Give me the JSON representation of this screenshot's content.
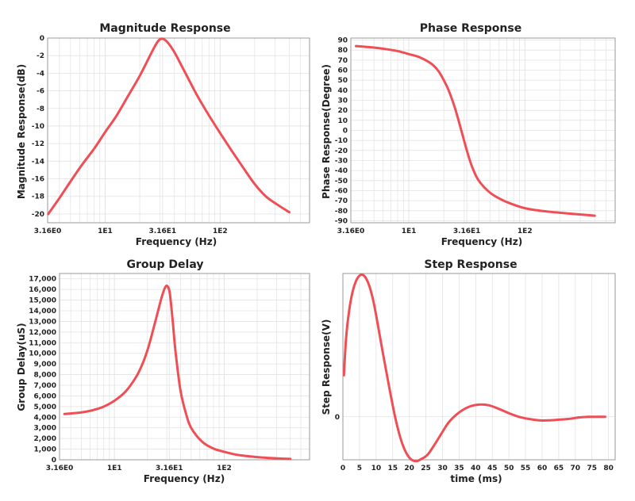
{
  "colors": {
    "line": "#f04e55",
    "grid": "#e2e2e2",
    "frame": "#999999"
  },
  "chart_data": [
    {
      "type": "line",
      "title": "Magnitude Response",
      "xlabel": "Frequency (Hz)",
      "ylabel": "Magnitude Response(dB)",
      "xscale": "log",
      "xlim": [
        3.16,
        600
      ],
      "ylim": [
        -21,
        0
      ],
      "xticks": [
        {
          "v": 3.16,
          "label": "3.16E0"
        },
        {
          "v": 10,
          "label": "1E1"
        },
        {
          "v": 31.6,
          "label": "3.16E1"
        },
        {
          "v": 100,
          "label": "1E2"
        }
      ],
      "yticks": [
        {
          "v": 0,
          "label": "0"
        },
        {
          "v": -2,
          "label": "-2"
        },
        {
          "v": -4,
          "label": "-4"
        },
        {
          "v": -6,
          "label": "-6"
        },
        {
          "v": -8,
          "label": "-8"
        },
        {
          "v": -10,
          "label": "-10"
        },
        {
          "v": -12,
          "label": "-12"
        },
        {
          "v": -14,
          "label": "-14"
        },
        {
          "v": -16,
          "label": "-16"
        },
        {
          "v": -18,
          "label": "-18"
        },
        {
          "v": -20,
          "label": "-20"
        }
      ],
      "grid": true,
      "series": [
        {
          "x": [
            3.2,
            4.0,
            5.0,
            6.3,
            8.0,
            10,
            12.6,
            15.8,
            20,
            25,
            28,
            30,
            32,
            35,
            40,
            50,
            63,
            80,
            100,
            126,
            160,
            200,
            250,
            320,
            400
          ],
          "y": [
            -20.0,
            -18.2,
            -16.3,
            -14.4,
            -12.6,
            -10.7,
            -8.8,
            -6.6,
            -4.3,
            -1.8,
            -0.6,
            -0.15,
            -0.1,
            -0.5,
            -1.6,
            -4.0,
            -6.5,
            -8.8,
            -10.8,
            -12.8,
            -14.8,
            -16.6,
            -18.0,
            -19.0,
            -19.8
          ]
        }
      ]
    },
    {
      "type": "line",
      "title": "Phase Response",
      "xlabel": "Frequency (Hz)",
      "ylabel": "Phase Response(Degree)",
      "xscale": "log",
      "xlim": [
        3.16,
        600
      ],
      "ylim": [
        -92,
        92
      ],
      "xticks": [
        {
          "v": 3.16,
          "label": "3.16E0"
        },
        {
          "v": 10,
          "label": "1E1"
        },
        {
          "v": 31.6,
          "label": "3.16E1"
        },
        {
          "v": 100,
          "label": "1E2"
        }
      ],
      "yticks": [
        {
          "v": 90,
          "label": "90"
        },
        {
          "v": 80,
          "label": "80"
        },
        {
          "v": 70,
          "label": "70"
        },
        {
          "v": 60,
          "label": "60"
        },
        {
          "v": 50,
          "label": "50"
        },
        {
          "v": 40,
          "label": "40"
        },
        {
          "v": 30,
          "label": "30"
        },
        {
          "v": 20,
          "label": "20"
        },
        {
          "v": 10,
          "label": "10"
        },
        {
          "v": 0,
          "label": "0"
        },
        {
          "v": -10,
          "label": "-10"
        },
        {
          "v": -20,
          "label": "-20"
        },
        {
          "v": -30,
          "label": "-30"
        },
        {
          "v": -40,
          "label": "-40"
        },
        {
          "v": -50,
          "label": "-50"
        },
        {
          "v": -60,
          "label": "-60"
        },
        {
          "v": -70,
          "label": "-70"
        },
        {
          "v": -80,
          "label": "-80"
        },
        {
          "v": -90,
          "label": "-90"
        }
      ],
      "grid": true,
      "series": [
        {
          "x": [
            3.5,
            5,
            6.3,
            8,
            10,
            12.6,
            15.8,
            18,
            20,
            22,
            25,
            28,
            31.6,
            35,
            40,
            50,
            63,
            80,
            100,
            126,
            160,
            200,
            250,
            320,
            400
          ],
          "y": [
            84,
            82.5,
            81,
            79,
            76,
            72.5,
            66,
            59,
            50,
            40,
            22,
            2,
            -20,
            -36,
            -50,
            -62,
            -69,
            -74,
            -77.5,
            -79.5,
            -81,
            -82,
            -83,
            -84,
            -85
          ]
        }
      ]
    },
    {
      "type": "line",
      "title": "Group Delay",
      "xlabel": "Frequency (Hz)",
      "ylabel": "Group Delay(uS)",
      "xscale": "log",
      "xlim": [
        3.16,
        600
      ],
      "ylim": [
        0,
        17500
      ],
      "xticks": [
        {
          "v": 3.16,
          "label": "3.16E0"
        },
        {
          "v": 10,
          "label": "1E1"
        },
        {
          "v": 31.6,
          "label": "3.16E1"
        },
        {
          "v": 100,
          "label": "1E2"
        }
      ],
      "yticks": [
        {
          "v": 0,
          "label": "0"
        },
        {
          "v": 1000,
          "label": "1,000"
        },
        {
          "v": 2000,
          "label": "2,000"
        },
        {
          "v": 3000,
          "label": "3,000"
        },
        {
          "v": 4000,
          "label": "4,000"
        },
        {
          "v": 5000,
          "label": "5,000"
        },
        {
          "v": 6000,
          "label": "6,000"
        },
        {
          "v": 7000,
          "label": "7,000"
        },
        {
          "v": 8000,
          "label": "8,000"
        },
        {
          "v": 9000,
          "label": "9,000"
        },
        {
          "v": 10000,
          "label": "10,000"
        },
        {
          "v": 11000,
          "label": "11,000"
        },
        {
          "v": 12000,
          "label": "12,000"
        },
        {
          "v": 13000,
          "label": "13,000"
        },
        {
          "v": 14000,
          "label": "14,000"
        },
        {
          "v": 15000,
          "label": "15,000"
        },
        {
          "v": 16000,
          "label": "16,000"
        },
        {
          "v": 17000,
          "label": "17,000"
        }
      ],
      "grid": true,
      "series": [
        {
          "x": [
            3.5,
            5,
            6.3,
            8,
            10,
            12.6,
            15.8,
            18,
            20,
            22,
            25,
            27,
            29,
            30.5,
            32,
            34,
            36,
            40,
            45,
            50,
            63,
            80,
            100,
            126,
            160,
            200,
            250,
            320,
            400
          ],
          "y": [
            4300,
            4450,
            4650,
            5000,
            5550,
            6400,
            7800,
            9000,
            10300,
            11800,
            14000,
            15300,
            16200,
            16300,
            15600,
            13000,
            10200,
            6500,
            4300,
            3000,
            1700,
            1050,
            750,
            500,
            350,
            250,
            180,
            120,
            80
          ]
        }
      ]
    },
    {
      "type": "line",
      "title": "Step Response",
      "xlabel": "time (ms)",
      "ylabel": "Step Response(V)",
      "xscale": "linear",
      "xlim": [
        0,
        82
      ],
      "ylim": [
        -60,
        200
      ],
      "xticks": [
        {
          "v": 0,
          "label": "0"
        },
        {
          "v": 5,
          "label": "5"
        },
        {
          "v": 10,
          "label": "10"
        },
        {
          "v": 15,
          "label": "15"
        },
        {
          "v": 20,
          "label": "20"
        },
        {
          "v": 25,
          "label": "25"
        },
        {
          "v": 30,
          "label": "30"
        },
        {
          "v": 35,
          "label": "35"
        },
        {
          "v": 40,
          "label": "40"
        },
        {
          "v": 45,
          "label": "45"
        },
        {
          "v": 50,
          "label": "50"
        },
        {
          "v": 55,
          "label": "55"
        },
        {
          "v": 60,
          "label": "60"
        },
        {
          "v": 65,
          "label": "65"
        },
        {
          "v": 70,
          "label": "70"
        },
        {
          "v": 75,
          "label": "75"
        },
        {
          "v": 80,
          "label": "80"
        }
      ],
      "yticks": [
        {
          "v": 0,
          "label": "0"
        }
      ],
      "grid": true,
      "series": [
        {
          "x": [
            0.3,
            1,
            2,
            3,
            4,
            5,
            6,
            7,
            8,
            9,
            10,
            12,
            14,
            16,
            18,
            20,
            22,
            24,
            25,
            26,
            28,
            30,
            32,
            35,
            38,
            41,
            44,
            47,
            50,
            53,
            56,
            59,
            62,
            65,
            68,
            71,
            74,
            77,
            79
          ],
          "y": [
            58,
            112,
            152,
            176,
            190,
            197,
            198,
            193,
            182,
            165,
            142,
            90,
            40,
            -6,
            -39,
            -57,
            -62,
            -58,
            -55,
            -50,
            -36,
            -21,
            -7,
            6,
            14,
            17,
            16,
            11,
            5,
            0,
            -3,
            -5,
            -5,
            -4,
            -3,
            -1,
            0,
            0,
            0
          ]
        }
      ]
    }
  ]
}
